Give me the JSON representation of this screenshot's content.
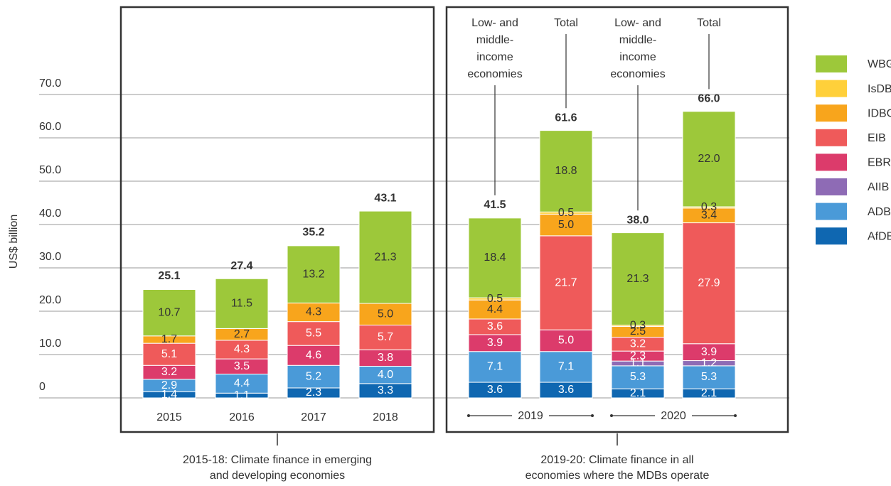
{
  "chart_data": {
    "type": "stacked-bar",
    "y_label": "US$ billion",
    "categories": [
      "2015",
      "2016",
      "2017",
      "2018",
      null,
      null,
      null,
      null
    ],
    "x_groups": [
      "2019",
      "2020"
    ],
    "annotations": [
      [
        "Low- and",
        "middle-",
        "income",
        "economies"
      ],
      [
        "Total"
      ],
      [
        "Low- and",
        "middle-",
        "income",
        "economies"
      ],
      [
        "Total"
      ]
    ],
    "panels": [
      {
        "caption": [
          "2015-18: Climate finance in emerging",
          "and developing economies"
        ]
      },
      {
        "caption": [
          "2019-20: Climate finance in all",
          "economies where the MDBs operate"
        ]
      }
    ],
    "series": [
      {
        "name": "AfDB",
        "color": "#0f67b1",
        "values": [
          1.4,
          1.1,
          2.3,
          3.3,
          3.6,
          3.6,
          2.1,
          2.1
        ],
        "value_labels": [
          "1.4",
          "1.1",
          "2.3",
          "3.3",
          "3.6",
          "3.6",
          "2.1",
          "2.1"
        ]
      },
      {
        "name": "ADB",
        "color": "#4a9ad8",
        "values": [
          2.9,
          4.4,
          5.2,
          4.0,
          7.1,
          7.1,
          5.3,
          5.3
        ],
        "value_labels": [
          "2.9",
          "4.4",
          "5.2",
          "4.0",
          "7.1",
          "7.1",
          "5.3",
          "5.3"
        ]
      },
      {
        "name": "AIIB",
        "color": "#8e6bb5",
        "values": [
          null,
          null,
          null,
          null,
          null,
          null,
          1.1,
          1.2
        ],
        "value_labels": [
          null,
          null,
          null,
          null,
          null,
          null,
          "1.1",
          "1.2"
        ]
      },
      {
        "name": "EBRD",
        "color": "#dc3b6b",
        "values": [
          3.2,
          3.5,
          4.6,
          3.8,
          3.9,
          5.0,
          2.3,
          3.9
        ],
        "value_labels": [
          "3.2",
          "3.5",
          "4.6",
          "3.8",
          "3.9",
          "5.0",
          "2.3",
          "3.9"
        ]
      },
      {
        "name": "EIB",
        "color": "#ef5a5a",
        "values": [
          5.1,
          4.3,
          5.5,
          5.7,
          3.6,
          21.7,
          3.2,
          27.9
        ],
        "value_labels": [
          "5.1",
          "4.3",
          "5.5",
          "5.7",
          "3.6",
          "21.7",
          "3.2",
          "27.9"
        ]
      },
      {
        "name": "IDBG",
        "color": "#f8a51c",
        "values": [
          1.7,
          2.7,
          4.3,
          5.0,
          4.4,
          5.0,
          2.5,
          3.4
        ],
        "value_labels": [
          "1.7",
          "2.7",
          "4.3",
          "5.0",
          "4.4",
          "5.0",
          "2.5",
          "3.4"
        ]
      },
      {
        "name": "IsDB",
        "color": "#ffd03a",
        "values": [
          null,
          null,
          null,
          null,
          0.5,
          0.5,
          0.3,
          0.3
        ],
        "value_labels": [
          null,
          null,
          null,
          null,
          "0.5",
          "0.5",
          "0.3",
          "0.3"
        ]
      },
      {
        "name": "WBG",
        "color": "#9dc83a",
        "values": [
          10.7,
          11.5,
          13.2,
          21.3,
          18.4,
          18.8,
          21.3,
          22.0
        ],
        "value_labels": [
          "10.7",
          "11.5",
          "13.2",
          "21.3",
          "18.4",
          "18.8",
          "21.3",
          "22.0"
        ]
      }
    ],
    "totals": {
      "values": [
        25.1,
        27.4,
        35.2,
        43.1,
        41.5,
        61.6,
        38.0,
        66.0
      ],
      "value_labels": [
        "25.1",
        "27.4",
        "35.2",
        "43.1",
        "41.5",
        "61.6",
        "38.0",
        "66.0"
      ]
    },
    "ylim": [
      0,
      70
    ],
    "yticks": [
      0,
      {
        "value": 10,
        "label": "10.0"
      },
      {
        "value": 20,
        "label": "20.0"
      },
      {
        "value": 30,
        "label": "30.0"
      },
      {
        "value": 40,
        "label": "40.0"
      },
      {
        "value": 50,
        "label": "50.0"
      },
      {
        "value": 60,
        "label": "60.0"
      },
      {
        "value": 70,
        "label": "70.0"
      }
    ],
    "grid": true,
    "legend": "right"
  }
}
